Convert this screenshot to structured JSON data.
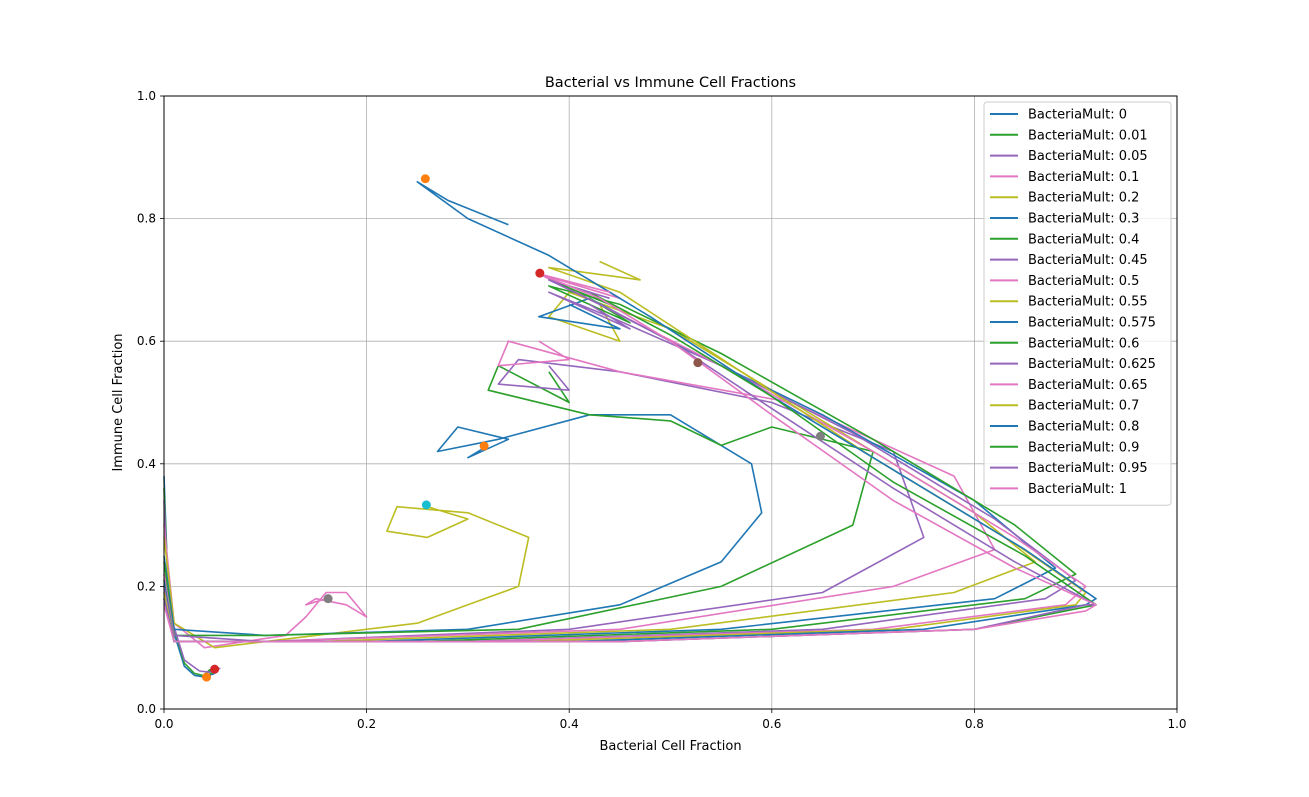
{
  "chart_data": {
    "type": "line",
    "title": "Bacterial vs Immune Cell Fractions",
    "xlabel": "Bacterial Cell Fraction",
    "ylabel": "Immune Cell Fraction",
    "xlim": [
      0.0,
      1.0
    ],
    "ylim": [
      0.0,
      1.0
    ],
    "xticks": [
      0.0,
      0.2,
      0.4,
      0.6,
      0.8,
      1.0
    ],
    "yticks": [
      0.0,
      0.2,
      0.4,
      0.6,
      0.8,
      1.0
    ],
    "xtick_labels": [
      "0.0",
      "0.2",
      "0.4",
      "0.6",
      "0.8",
      "1.0"
    ],
    "ytick_labels": [
      "0.0",
      "0.2",
      "0.4",
      "0.6",
      "0.8",
      "1.0"
    ],
    "grid": true,
    "legend_position": "upper-right",
    "series": [
      {
        "name": "BacteriaMult: 0",
        "color": "#1f77b4",
        "x": [
          0.0,
          0.005,
          0.02,
          0.03,
          0.04,
          0.05,
          0.045,
          0.04
        ],
        "y": [
          0.38,
          0.15,
          0.07,
          0.055,
          0.052,
          0.058,
          0.062,
          0.055
        ]
      },
      {
        "name": "BacteriaMult: 0.01",
        "color": "#2ca02c",
        "x": [
          0.0,
          0.005,
          0.02,
          0.03,
          0.04,
          0.05,
          0.045,
          0.04
        ],
        "y": [
          0.36,
          0.16,
          0.075,
          0.058,
          0.054,
          0.06,
          0.064,
          0.056
        ]
      },
      {
        "name": "BacteriaMult: 0.05",
        "color": "#9467bd",
        "x": [
          0.0,
          0.005,
          0.02,
          0.035,
          0.045,
          0.055,
          0.05
        ],
        "y": [
          0.34,
          0.16,
          0.08,
          0.062,
          0.06,
          0.066,
          0.068
        ]
      },
      {
        "name": "BacteriaMult: 0.1",
        "color": "#e377c2",
        "x": [
          0.0,
          0.01,
          0.04,
          0.08,
          0.12,
          0.14,
          0.16,
          0.18,
          0.2,
          0.18,
          0.15,
          0.14,
          0.16
        ],
        "y": [
          0.3,
          0.14,
          0.1,
          0.11,
          0.12,
          0.15,
          0.19,
          0.19,
          0.15,
          0.17,
          0.18,
          0.17,
          0.18
        ]
      },
      {
        "name": "BacteriaMult: 0.2",
        "color": "#bcbd22",
        "x": [
          0.0,
          0.01,
          0.05,
          0.15,
          0.25,
          0.3,
          0.35,
          0.36,
          0.3,
          0.23,
          0.22,
          0.26,
          0.3,
          0.26
        ],
        "y": [
          0.28,
          0.14,
          0.1,
          0.12,
          0.14,
          0.17,
          0.2,
          0.28,
          0.32,
          0.33,
          0.29,
          0.28,
          0.31,
          0.33
        ]
      },
      {
        "name": "BacteriaMult: 0.3",
        "color": "#1f77b4",
        "x": [
          0.0,
          0.01,
          0.1,
          0.3,
          0.45,
          0.55,
          0.59,
          0.58,
          0.5,
          0.42,
          0.33,
          0.27,
          0.29,
          0.34,
          0.3,
          0.32
        ],
        "y": [
          0.25,
          0.13,
          0.12,
          0.13,
          0.17,
          0.24,
          0.32,
          0.4,
          0.48,
          0.48,
          0.44,
          0.42,
          0.46,
          0.44,
          0.41,
          0.43
        ]
      },
      {
        "name": "BacteriaMult: 0.4",
        "color": "#2ca02c",
        "x": [
          0.0,
          0.01,
          0.1,
          0.35,
          0.55,
          0.68,
          0.7,
          0.6,
          0.55,
          0.5,
          0.42,
          0.32,
          0.33,
          0.4,
          0.38
        ],
        "y": [
          0.24,
          0.12,
          0.12,
          0.13,
          0.2,
          0.3,
          0.42,
          0.46,
          0.43,
          0.47,
          0.48,
          0.52,
          0.56,
          0.5,
          0.55
        ]
      },
      {
        "name": "BacteriaMult: 0.45",
        "color": "#9467bd",
        "x": [
          0.0,
          0.01,
          0.1,
          0.4,
          0.65,
          0.75,
          0.72,
          0.6,
          0.45,
          0.35,
          0.33,
          0.4,
          0.38
        ],
        "y": [
          0.22,
          0.12,
          0.11,
          0.13,
          0.19,
          0.28,
          0.42,
          0.5,
          0.55,
          0.57,
          0.53,
          0.52,
          0.56
        ]
      },
      {
        "name": "BacteriaMult: 0.5",
        "color": "#e377c2",
        "x": [
          0.0,
          0.01,
          0.1,
          0.45,
          0.72,
          0.82,
          0.78,
          0.62,
          0.45,
          0.34,
          0.33,
          0.4,
          0.37
        ],
        "y": [
          0.22,
          0.11,
          0.11,
          0.13,
          0.2,
          0.26,
          0.38,
          0.5,
          0.55,
          0.6,
          0.56,
          0.57,
          0.6
        ]
      },
      {
        "name": "BacteriaMult: 0.55",
        "color": "#bcbd22",
        "x": [
          0.0,
          0.01,
          0.15,
          0.5,
          0.78,
          0.86,
          0.8,
          0.62,
          0.5,
          0.4,
          0.38,
          0.45,
          0.43
        ],
        "y": [
          0.21,
          0.11,
          0.11,
          0.13,
          0.19,
          0.24,
          0.32,
          0.5,
          0.62,
          0.68,
          0.64,
          0.6,
          0.66
        ]
      },
      {
        "name": "BacteriaMult: 0.575",
        "color": "#1f77b4",
        "x": [
          0.0,
          0.01,
          0.2,
          0.55,
          0.82,
          0.88,
          0.8,
          0.65,
          0.5,
          0.42,
          0.37,
          0.45,
          0.4
        ],
        "y": [
          0.21,
          0.11,
          0.11,
          0.13,
          0.18,
          0.23,
          0.34,
          0.48,
          0.6,
          0.67,
          0.64,
          0.62,
          0.66
        ]
      },
      {
        "name": "BacteriaMult: 0.6",
        "color": "#2ca02c",
        "x": [
          0.0,
          0.01,
          0.25,
          0.6,
          0.85,
          0.9,
          0.84,
          0.7,
          0.55,
          0.45,
          0.38,
          0.46,
          0.42
        ],
        "y": [
          0.2,
          0.11,
          0.11,
          0.13,
          0.18,
          0.22,
          0.3,
          0.44,
          0.58,
          0.66,
          0.69,
          0.63,
          0.67
        ]
      },
      {
        "name": "BacteriaMult: 0.625",
        "color": "#9467bd",
        "x": [
          0.0,
          0.01,
          0.3,
          0.65,
          0.87,
          0.9,
          0.82,
          0.68,
          0.55,
          0.44,
          0.38,
          0.46,
          0.42
        ],
        "y": [
          0.2,
          0.11,
          0.11,
          0.13,
          0.18,
          0.21,
          0.31,
          0.45,
          0.56,
          0.64,
          0.68,
          0.62,
          0.66
        ]
      },
      {
        "name": "BacteriaMult: 0.65",
        "color": "#e377c2",
        "x": [
          0.0,
          0.01,
          0.3,
          0.7,
          0.89,
          0.91,
          0.84,
          0.7,
          0.55,
          0.43,
          0.37,
          0.45,
          0.42
        ],
        "y": [
          0.19,
          0.11,
          0.11,
          0.13,
          0.17,
          0.2,
          0.28,
          0.42,
          0.56,
          0.66,
          0.71,
          0.67,
          0.7
        ]
      },
      {
        "name": "BacteriaMult: 0.7",
        "color": "#bcbd22",
        "x": [
          0.0,
          0.01,
          0.35,
          0.72,
          0.9,
          0.91,
          0.84,
          0.7,
          0.57,
          0.45,
          0.38,
          0.47,
          0.43
        ],
        "y": [
          0.19,
          0.11,
          0.11,
          0.13,
          0.17,
          0.19,
          0.27,
          0.41,
          0.55,
          0.68,
          0.72,
          0.7,
          0.73
        ]
      },
      {
        "name": "BacteriaMult: 0.8",
        "color": "#1f77b4",
        "x": [
          0.0,
          0.01,
          0.4,
          0.75,
          0.91,
          0.92,
          0.85,
          0.72,
          0.6,
          0.48,
          0.38,
          0.3,
          0.25,
          0.28,
          0.34
        ],
        "y": [
          0.18,
          0.11,
          0.11,
          0.13,
          0.17,
          0.18,
          0.26,
          0.39,
          0.51,
          0.64,
          0.74,
          0.8,
          0.86,
          0.83,
          0.79
        ]
      },
      {
        "name": "BacteriaMult: 0.9",
        "color": "#2ca02c",
        "x": [
          0.0,
          0.01,
          0.45,
          0.8,
          0.92,
          0.92,
          0.85,
          0.72,
          0.6,
          0.5,
          0.42,
          0.38,
          0.44
        ],
        "y": [
          0.18,
          0.11,
          0.11,
          0.13,
          0.17,
          0.17,
          0.25,
          0.37,
          0.51,
          0.61,
          0.68,
          0.7,
          0.66
        ]
      },
      {
        "name": "BacteriaMult: 0.95",
        "color": "#9467bd",
        "x": [
          0.0,
          0.01,
          0.45,
          0.8,
          0.91,
          0.92,
          0.84,
          0.72,
          0.6,
          0.5,
          0.43,
          0.38,
          0.44
        ],
        "y": [
          0.18,
          0.11,
          0.11,
          0.13,
          0.17,
          0.17,
          0.24,
          0.36,
          0.49,
          0.6,
          0.66,
          0.7,
          0.67
        ]
      },
      {
        "name": "BacteriaMult: 1",
        "color": "#e377c2",
        "x": [
          0.0,
          0.01,
          0.45,
          0.8,
          0.91,
          0.92,
          0.84,
          0.72,
          0.6,
          0.5,
          0.43,
          0.37,
          0.44
        ],
        "y": [
          0.17,
          0.11,
          0.11,
          0.13,
          0.16,
          0.17,
          0.23,
          0.34,
          0.48,
          0.6,
          0.67,
          0.71,
          0.68
        ]
      }
    ],
    "markers": [
      {
        "color": "#ff7f0e",
        "x": 0.042,
        "y": 0.052
      },
      {
        "color": "#d62728",
        "x": 0.05,
        "y": 0.065
      },
      {
        "color": "#7f7f7f",
        "x": 0.162,
        "y": 0.18
      },
      {
        "color": "#17becf",
        "x": 0.259,
        "y": 0.333
      },
      {
        "color": "#ff7f0e",
        "x": 0.316,
        "y": 0.429
      },
      {
        "color": "#8c564b",
        "x": 0.527,
        "y": 0.565
      },
      {
        "color": "#d62728",
        "x": 0.371,
        "y": 0.711
      },
      {
        "color": "#ff7f0e",
        "x": 0.258,
        "y": 0.865
      },
      {
        "color": "#7f7f7f",
        "x": 0.648,
        "y": 0.445
      }
    ]
  }
}
